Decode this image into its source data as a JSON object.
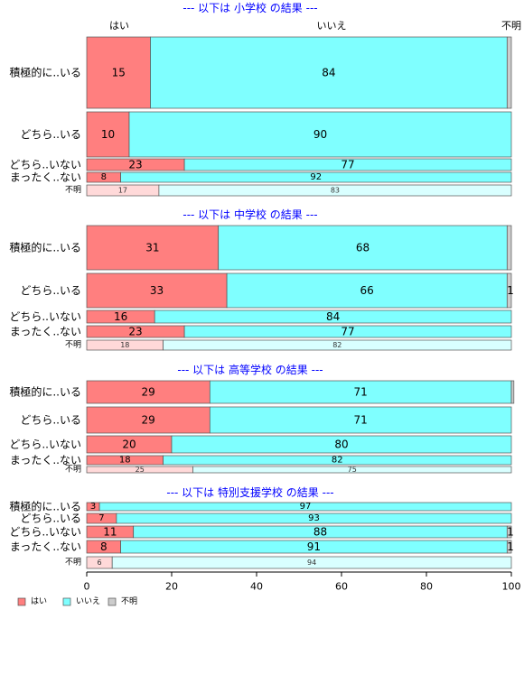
{
  "chart_data": {
    "type": "bar",
    "orientation": "horizontal",
    "stacked": true,
    "column_headers": [
      "はい",
      "いいえ",
      "不明"
    ],
    "xlim": [
      0,
      100
    ],
    "xticks": [
      0,
      20,
      40,
      60,
      80,
      100
    ],
    "grid": false,
    "legend_placement": "bottom-left",
    "colors": {
      "yes": "#ff7f7f",
      "no": "#7fffff",
      "unknown": "#cccccc",
      "yes_light": "#ffd9d9",
      "no_light": "#d9ffff",
      "title": "#0000ff"
    },
    "legend": [
      {
        "key": "yes",
        "label": "はい"
      },
      {
        "key": "no",
        "label": "いいえ"
      },
      {
        "key": "unknown",
        "label": "不明"
      }
    ],
    "panels": [
      {
        "title": "--- 以下は 小学校 の結果 ---",
        "rows": [
          {
            "label": "積極的に..いる",
            "yes": 15,
            "no": 84,
            "unknown": 1
          },
          {
            "label": "どちら..いる",
            "yes": 10,
            "no": 90,
            "unknown": 0
          },
          {
            "label": "どちら..いない",
            "yes": 23,
            "no": 77,
            "unknown": 0
          },
          {
            "label": "まったく..ない",
            "yes": 8,
            "no": 92,
            "unknown": 0
          },
          {
            "label": "不明",
            "yes": 17,
            "no": 83,
            "unknown": 0,
            "missing": true
          }
        ]
      },
      {
        "title": "--- 以下は 中学校 の結果 ---",
        "rows": [
          {
            "label": "積極的に..いる",
            "yes": 31,
            "no": 68,
            "unknown": 1
          },
          {
            "label": "どちら..いる",
            "yes": 33,
            "no": 66,
            "unknown": 1,
            "unknown_label": "1"
          },
          {
            "label": "どちら..いない",
            "yes": 16,
            "no": 84,
            "unknown": 0
          },
          {
            "label": "まったく..ない",
            "yes": 23,
            "no": 77,
            "unknown": 0
          },
          {
            "label": "不明",
            "yes": 18,
            "no": 82,
            "unknown": 0,
            "missing": true
          }
        ]
      },
      {
        "title": "--- 以下は 高等学校 の結果 ---",
        "rows": [
          {
            "label": "積極的に..いる",
            "yes": 29,
            "no": 71,
            "unknown": 0.6
          },
          {
            "label": "どちら..いる",
            "yes": 29,
            "no": 71,
            "unknown": 0
          },
          {
            "label": "どちら..いない",
            "yes": 20,
            "no": 80,
            "unknown": 0
          },
          {
            "label": "まったく..ない",
            "yes": 18,
            "no": 82,
            "unknown": 0
          },
          {
            "label": "不明",
            "yes": 25,
            "no": 75,
            "unknown": 0,
            "missing": true
          }
        ]
      },
      {
        "title": "--- 以下は 特別支援学校 の結果 ---",
        "rows": [
          {
            "label": "積極的に..いる",
            "yes": 3,
            "no": 97,
            "unknown": 0
          },
          {
            "label": "どちら..いる",
            "yes": 7,
            "no": 93,
            "unknown": 0
          },
          {
            "label": "どちら..いない",
            "yes": 11,
            "no": 88,
            "unknown": 1,
            "unknown_label": "1"
          },
          {
            "label": "まったく..ない",
            "yes": 8,
            "no": 91,
            "unknown": 1,
            "unknown_label": "1"
          },
          {
            "label": "不明",
            "yes": 6,
            "no": 94,
            "unknown": 0,
            "missing": true
          }
        ]
      }
    ]
  }
}
